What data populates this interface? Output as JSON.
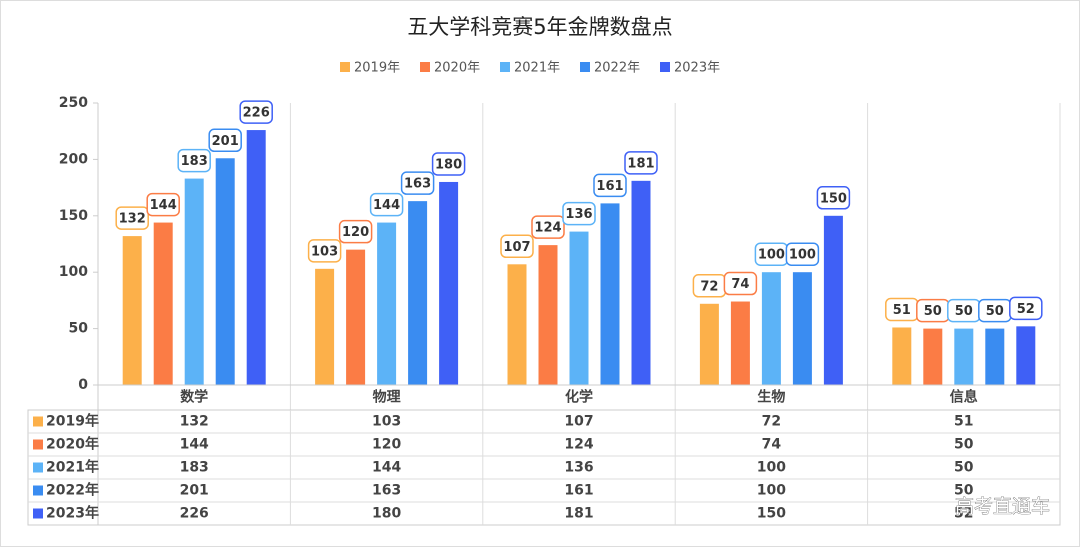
{
  "chart_data": {
    "type": "bar",
    "title": "五大学科竞赛5年金牌数盘点",
    "categories": [
      "数学",
      "物理",
      "化学",
      "生物",
      "信息"
    ],
    "series": [
      {
        "name": "2019年",
        "color": "#fcb04a",
        "values": [
          132,
          103,
          107,
          72,
          51
        ]
      },
      {
        "name": "2020年",
        "color": "#fb7c45",
        "values": [
          144,
          120,
          124,
          74,
          50
        ]
      },
      {
        "name": "2021年",
        "color": "#5cb3f7",
        "values": [
          183,
          144,
          136,
          100,
          50
        ]
      },
      {
        "name": "2022年",
        "color": "#3a8cf1",
        "values": [
          201,
          163,
          161,
          100,
          50
        ]
      },
      {
        "name": "2023年",
        "color": "#3f60f6",
        "values": [
          226,
          180,
          181,
          150,
          52
        ]
      }
    ],
    "ylim": [
      0,
      250
    ],
    "yticks": [
      0,
      50,
      100,
      150,
      200,
      250
    ],
    "watermark": "高考直通车"
  }
}
